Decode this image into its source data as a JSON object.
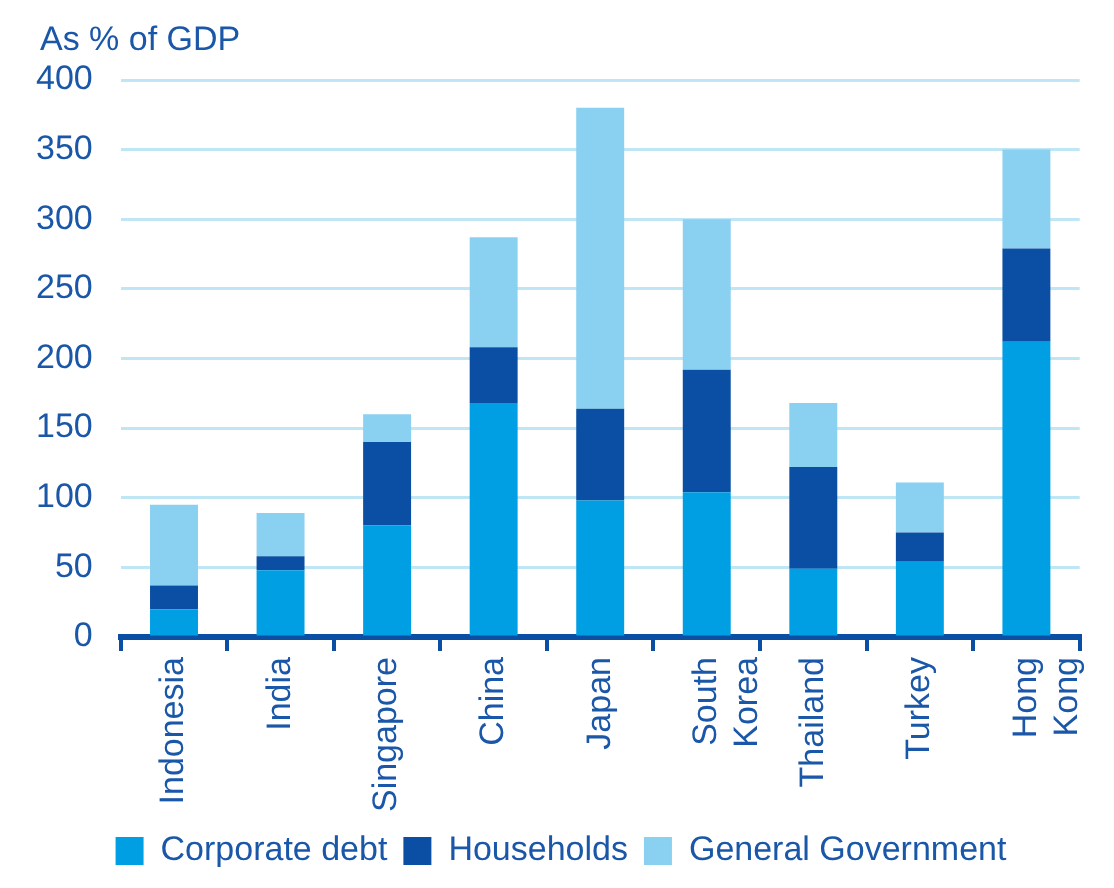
{
  "chart_data": {
    "type": "bar",
    "stacked": true,
    "ylabel": "As % of GDP",
    "categories": [
      "Indonesia",
      "India",
      "Singapore",
      "China",
      "Japan",
      "South Korea",
      "Thailand",
      "Turkey",
      "Hong Kong"
    ],
    "series": [
      {
        "name": "Corporate debt",
        "color": "#009fe3",
        "values": [
          20,
          48,
          80,
          168,
          98,
          104,
          49,
          54,
          212
        ]
      },
      {
        "name": "Households",
        "color": "#0a4fa3",
        "values": [
          17,
          10,
          60,
          40,
          66,
          88,
          73,
          21,
          67
        ]
      },
      {
        "name": "General Government",
        "color": "#8ad0f0",
        "values": [
          58,
          31,
          20,
          79,
          216,
          108,
          46,
          36,
          71
        ]
      }
    ],
    "ylim": [
      0,
      400
    ],
    "yticks": [
      0,
      50,
      100,
      150,
      200,
      250,
      300,
      350,
      400
    ],
    "grid": "y",
    "legend": "bottom"
  }
}
